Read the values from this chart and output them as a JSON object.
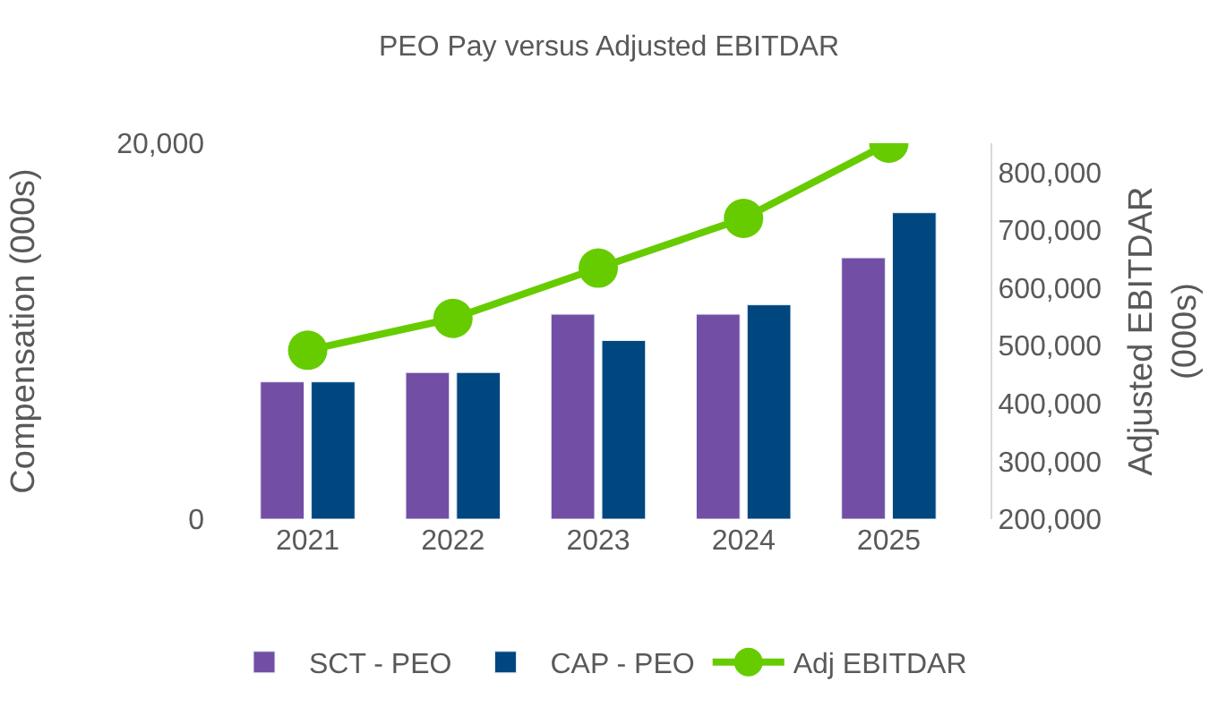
{
  "chart_data": {
    "type": "bar",
    "title": "PEO Pay versus Adjusted EBITDAR",
    "ylabel": "Compensation (000s)",
    "y2label": "Adjusted EBITDAR (000s)",
    "categories": [
      "2021",
      "2022",
      "2023",
      "2024",
      "2025"
    ],
    "series": [
      {
        "name": "SCT - PEO",
        "color": "#734ea5",
        "values": [
          7300,
          7800,
          10900,
          10900,
          13900
        ]
      },
      {
        "name": "CAP - PEO",
        "color": "#00467f",
        "values": [
          7300,
          7800,
          9500,
          11400,
          16300
        ]
      },
      {
        "name": "Adj EBITDAR",
        "type": "line",
        "axis": "y2",
        "color": "#66cc00",
        "marker": "circle",
        "values": [
          492000,
          547000,
          634000,
          720000,
          850000
        ]
      }
    ],
    "ylim": [
      0,
      20000
    ],
    "yticks": [
      {
        "value": 0,
        "label": "0"
      },
      {
        "value": 20000,
        "label": "20,000"
      }
    ],
    "y2lim": [
      200000,
      850000
    ],
    "y2ticks": [
      {
        "value": 200000,
        "label": "200,000"
      },
      {
        "value": 300000,
        "label": "300,000"
      },
      {
        "value": 400000,
        "label": "400,000"
      },
      {
        "value": 500000,
        "label": "500,000"
      },
      {
        "value": 600000,
        "label": "600,000"
      },
      {
        "value": 700000,
        "label": "700,000"
      },
      {
        "value": 800000,
        "label": "800,000"
      }
    ],
    "legend": "bottom"
  }
}
